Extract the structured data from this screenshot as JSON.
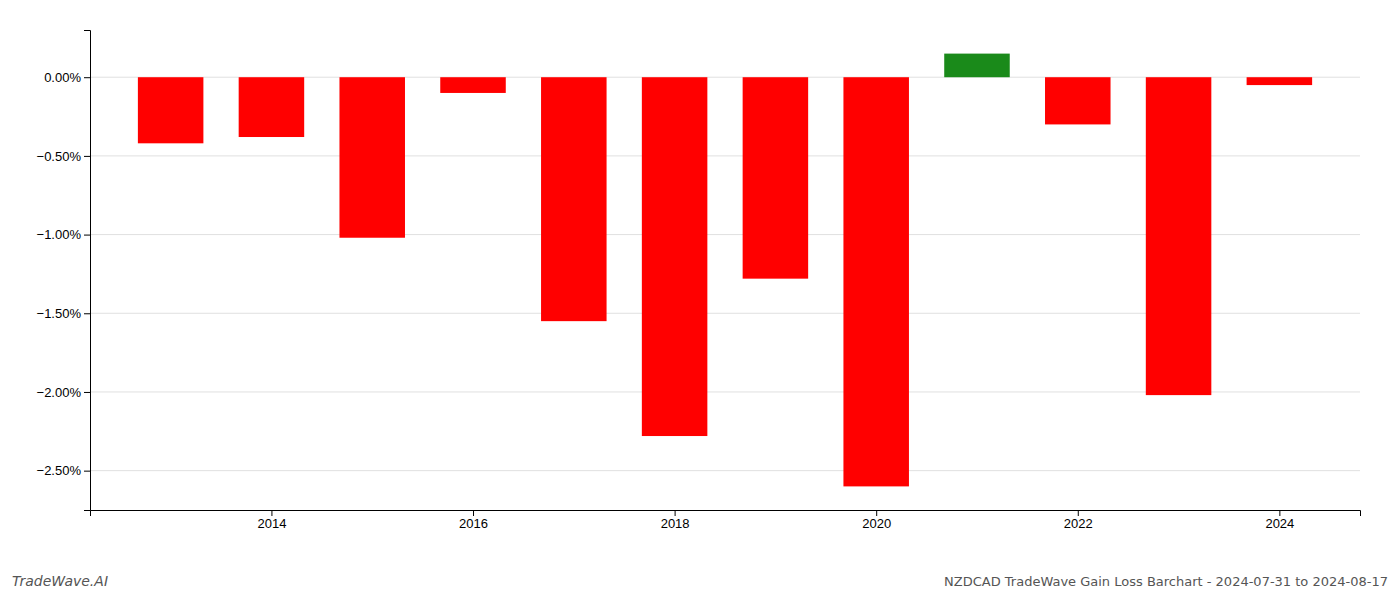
{
  "chart_data": {
    "type": "bar",
    "title": "NZDCAD TradeWave Gain Loss Barchart - 2024-07-31 to 2024-08-17",
    "annotations": [
      "TradeWave.AI"
    ],
    "x": [
      2013,
      2014,
      2015,
      2016,
      2017,
      2018,
      2019,
      2020,
      2021,
      2022,
      2023,
      2024
    ],
    "values": [
      -0.42,
      -0.38,
      -1.02,
      -0.1,
      -1.55,
      -2.28,
      -1.28,
      -2.6,
      0.15,
      -0.3,
      -2.02,
      -0.05
    ],
    "colors": [
      "#ff0000",
      "#ff0000",
      "#ff0000",
      "#ff0000",
      "#ff0000",
      "#ff0000",
      "#ff0000",
      "#ff0000",
      "#1a8a1a",
      "#ff0000",
      "#ff0000",
      "#ff0000"
    ],
    "xlim": [
      2012.2,
      2024.8
    ],
    "xticks": [
      2014,
      2016,
      2018,
      2020,
      2022,
      2024
    ],
    "ylim": [
      -2.75,
      0.3
    ],
    "yticks": [
      {
        "value": 0.0,
        "label": "0.00%"
      },
      {
        "value": -0.5,
        "label": "−0.50%"
      },
      {
        "value": -1.0,
        "label": "−1.00%"
      },
      {
        "value": -1.5,
        "label": "−1.50%"
      },
      {
        "value": -2.0,
        "label": "−2.00%"
      },
      {
        "value": -2.5,
        "label": "−2.50%"
      }
    ],
    "grid": true
  }
}
